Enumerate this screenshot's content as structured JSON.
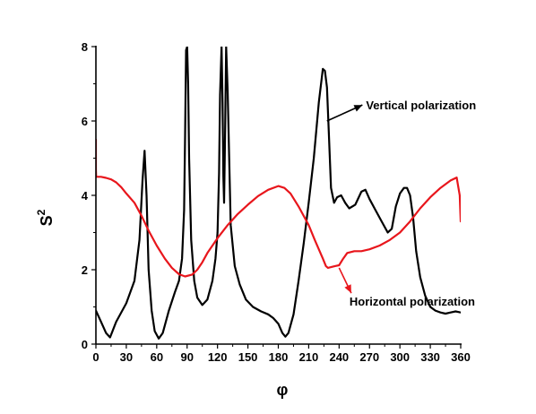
{
  "chart_data": {
    "type": "line",
    "title": "",
    "xlabel": "φ",
    "ylabel_base": "S",
    "ylabel_sup": "2",
    "xlim": [
      0,
      360
    ],
    "ylim": [
      0,
      8
    ],
    "xticks": [
      0,
      30,
      60,
      90,
      120,
      150,
      180,
      210,
      240,
      270,
      300,
      330,
      360
    ],
    "yticks": [
      0,
      2,
      4,
      6,
      8
    ],
    "grid": false,
    "legend": "none",
    "series": [
      {
        "key": "vertical",
        "color": "#000000",
        "x": [
          0,
          5,
          10,
          14,
          20,
          30,
          38,
          43,
          46,
          48,
          50,
          52,
          55,
          58,
          62,
          66,
          72,
          78,
          82,
          85,
          87,
          88,
          89,
          90,
          91,
          92,
          94,
          97,
          100,
          105,
          110,
          115,
          118,
          120,
          121.5,
          122.5,
          124,
          125,
          125.8,
          126.5,
          127.5,
          128.5,
          130,
          133,
          137,
          142,
          148,
          155,
          163,
          170,
          175,
          180,
          184,
          187,
          190,
          195,
          200,
          205,
          210,
          215,
          220,
          224,
          226,
          228,
          230,
          232,
          235,
          238,
          242,
          246,
          250,
          256,
          262,
          266,
          270,
          276,
          282,
          288,
          292,
          296,
          300,
          304,
          307,
          310,
          313,
          316,
          320,
          325,
          330,
          335,
          340,
          345,
          350,
          355,
          360
        ],
        "y": [
          0.9,
          0.6,
          0.3,
          0.18,
          0.6,
          1.1,
          1.7,
          2.8,
          4.4,
          5.2,
          4.0,
          2.0,
          0.9,
          0.35,
          0.15,
          0.3,
          0.9,
          1.4,
          1.7,
          2.3,
          3.6,
          5.6,
          7.9,
          8.0,
          7.0,
          5.0,
          2.8,
          1.7,
          1.25,
          1.05,
          1.2,
          1.7,
          2.3,
          3.0,
          4.6,
          6.7,
          8.0,
          6.5,
          4.5,
          3.8,
          5.6,
          8.0,
          6.8,
          3.2,
          2.1,
          1.6,
          1.2,
          1.0,
          0.88,
          0.8,
          0.7,
          0.55,
          0.3,
          0.2,
          0.3,
          0.8,
          1.7,
          2.7,
          3.8,
          5.0,
          6.5,
          7.4,
          7.35,
          6.9,
          5.6,
          4.2,
          3.8,
          3.95,
          4.0,
          3.8,
          3.65,
          3.75,
          4.1,
          4.15,
          3.9,
          3.6,
          3.3,
          3.0,
          3.1,
          3.7,
          4.05,
          4.2,
          4.2,
          4.0,
          3.4,
          2.5,
          1.8,
          1.3,
          1.0,
          0.9,
          0.85,
          0.82,
          0.85,
          0.88,
          0.85
        ]
      },
      {
        "key": "horizontal",
        "color": "#e8161c",
        "x": [
          0,
          0,
          0.3,
          5,
          10,
          15,
          20,
          25,
          30,
          38,
          45,
          52,
          60,
          68,
          75,
          82,
          88,
          95,
          100,
          105,
          110,
          120,
          130,
          140,
          150,
          160,
          170,
          180,
          186,
          192,
          200,
          210,
          216,
          220,
          224,
          227,
          229,
          232,
          236,
          240,
          244,
          248,
          255,
          262,
          270,
          280,
          290,
          300,
          310,
          320,
          330,
          340,
          350,
          356,
          359,
          360
        ],
        "y": [
          5.5,
          4.7,
          4.5,
          4.5,
          4.47,
          4.43,
          4.35,
          4.22,
          4.05,
          3.8,
          3.45,
          3.05,
          2.65,
          2.3,
          2.05,
          1.88,
          1.82,
          1.87,
          2.0,
          2.2,
          2.45,
          2.85,
          3.2,
          3.5,
          3.75,
          3.98,
          4.15,
          4.25,
          4.2,
          4.05,
          3.7,
          3.2,
          2.8,
          2.55,
          2.3,
          2.1,
          2.05,
          2.07,
          2.1,
          2.12,
          2.3,
          2.45,
          2.5,
          2.5,
          2.55,
          2.65,
          2.8,
          3.0,
          3.3,
          3.65,
          3.95,
          4.2,
          4.4,
          4.48,
          4.0,
          3.3
        ]
      }
    ],
    "annotations": [
      {
        "key": "vertical",
        "text": "Vertical  polarization",
        "arrow_from": [
          228,
          6.0
        ],
        "arrow_to": [
          263,
          6.43
        ]
      },
      {
        "key": "horizontal",
        "text": "Horizontal polarization",
        "arrow_from": [
          240,
          2.05
        ],
        "arrow_to": [
          252,
          1.37
        ]
      }
    ]
  }
}
